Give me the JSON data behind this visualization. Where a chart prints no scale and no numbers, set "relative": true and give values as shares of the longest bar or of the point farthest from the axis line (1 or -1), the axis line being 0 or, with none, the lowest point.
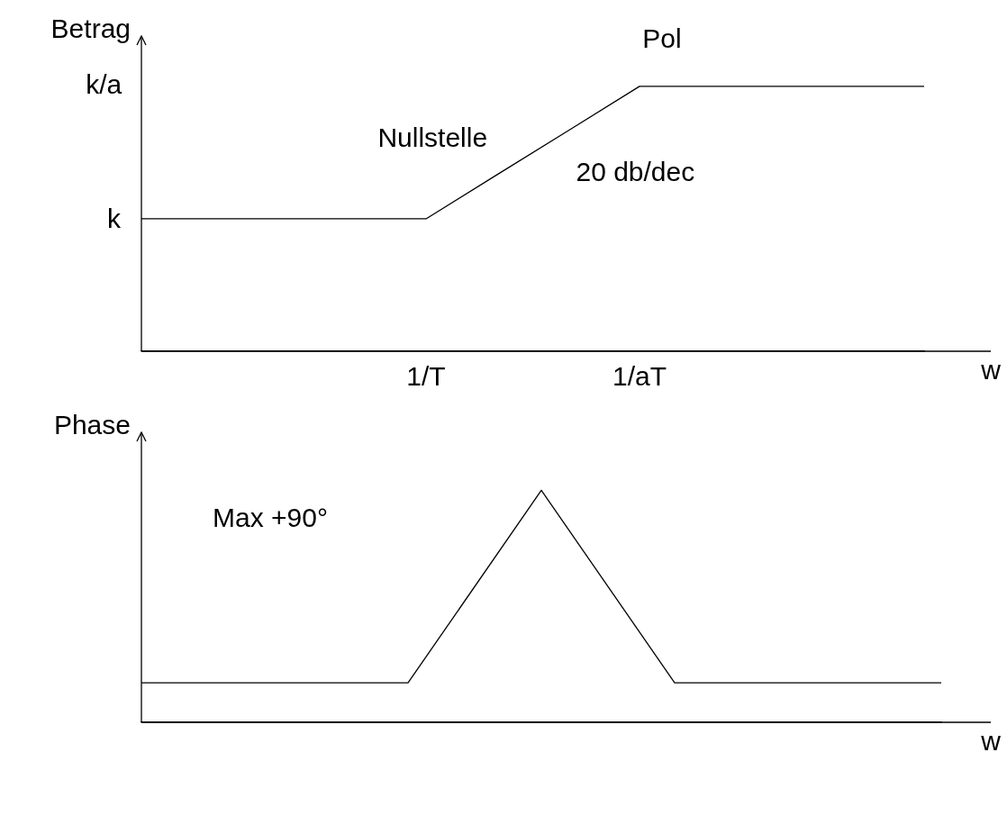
{
  "chart_data": [
    {
      "type": "line",
      "relative": true,
      "ylabel": "Betrag",
      "xlabel": "w",
      "categories": [
        null,
        null,
        null,
        null,
        "1/T",
        null,
        null,
        "1/aT",
        null,
        null,
        null,
        null
      ],
      "values": [
        0.5,
        0.5,
        0.5,
        0.5,
        0.5,
        0.667,
        0.833,
        1,
        1,
        1,
        1,
        1
      ],
      "color": "#000000",
      "marker": "none",
      "annotations": [
        "Pol",
        "Nullstelle",
        "20 db/dec",
        "k",
        "k/a"
      ]
    },
    {
      "type": "line",
      "relative": true,
      "ylabel": "Phase",
      "xlabel": "w",
      "categories": [
        null,
        null,
        null,
        null,
        null,
        null,
        null
      ],
      "values": [
        0.17,
        0.17,
        0.17,
        1,
        0.17,
        0.17,
        0.17
      ],
      "color": "#000000",
      "marker": "none",
      "annotations": [
        "Max +90°"
      ]
    }
  ]
}
